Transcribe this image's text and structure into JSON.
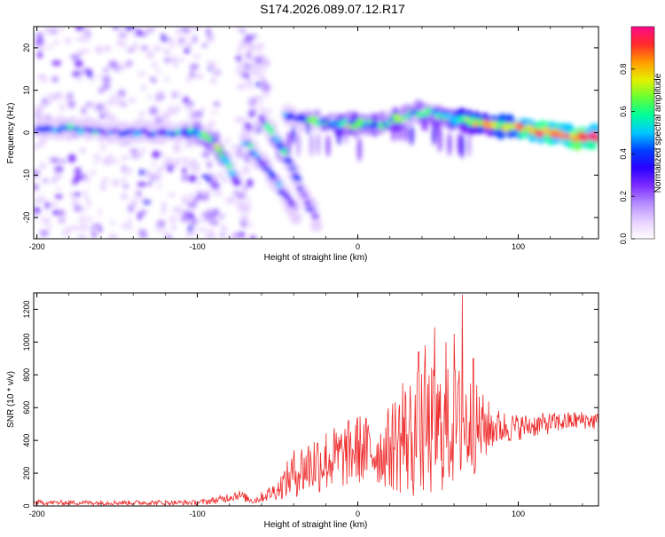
{
  "title": "S174.2026.089.07.12.R17",
  "colors": {
    "snr_line": "#ee2c2c",
    "frame": "#000000",
    "colormap": [
      "#ffffff",
      "#e6d0ff",
      "#b58cff",
      "#7d2cff",
      "#2a00ff",
      "#0040ff",
      "#00c8ff",
      "#00ff9a",
      "#66ff33",
      "#e6f000",
      "#ff9a00",
      "#ff2a2a",
      "#ff0a8c"
    ]
  },
  "chart_data": [
    {
      "type": "heatmap",
      "name": "spectrogram",
      "xlabel": "Height of straight line (km)",
      "ylabel": "Frequency (Hz)",
      "xlim": [
        -202,
        150
      ],
      "ylim": [
        -25,
        25
      ],
      "xticks": [
        -200,
        -100,
        0,
        100
      ],
      "yticks": [
        -20,
        -10,
        0,
        10,
        20
      ],
      "colorbar": {
        "label": "Normalized spectral amplitude",
        "range": [
          0,
          1
        ],
        "ticks": [
          0,
          0.2,
          0.4,
          0.6,
          0.8
        ],
        "tick_labels": [
          "0.0",
          "0.2",
          "0.4",
          "0.6",
          "0.8"
        ]
      },
      "ridges": [
        {
          "name": "main-ridge",
          "points": [
            [
              -200,
              1,
              0.25
            ],
            [
              -175,
              1,
              0.45
            ],
            [
              -150,
              0,
              0.35
            ],
            [
              -125,
              0,
              0.35
            ],
            [
              -100,
              0,
              0.5
            ],
            [
              -90,
              -2,
              0.55
            ],
            [
              -82,
              -7,
              0.55
            ],
            [
              -75,
              -12,
              0.35
            ]
          ]
        },
        {
          "name": "branch-1",
          "points": [
            [
              -70,
              -2,
              0.35
            ],
            [
              -60,
              -7,
              0.45
            ],
            [
              -50,
              -12,
              0.35
            ],
            [
              -38,
              -19,
              0.2
            ]
          ]
        },
        {
          "name": "branch-2",
          "points": [
            [
              -60,
              3,
              0.35
            ],
            [
              -48,
              -3,
              0.5
            ],
            [
              -40,
              -9,
              0.35
            ],
            [
              -32,
              -16,
              0.25
            ],
            [
              -25,
              -21,
              0.2
            ]
          ]
        },
        {
          "name": "upper-ridge",
          "points": [
            [
              -45,
              4,
              0.35
            ],
            [
              -30,
              3,
              0.5
            ],
            [
              -15,
              2,
              0.55
            ],
            [
              0,
              2,
              0.6
            ],
            [
              15,
              2,
              0.55
            ],
            [
              30,
              4,
              0.55
            ],
            [
              45,
              5,
              0.55
            ],
            [
              60,
              3,
              0.6
            ],
            [
              80,
              2,
              0.7
            ],
            [
              100,
              1,
              0.85
            ],
            [
              120,
              0,
              0.9
            ],
            [
              135,
              -1,
              0.95
            ],
            [
              150,
              -1,
              0.9
            ]
          ]
        }
      ]
    },
    {
      "type": "line",
      "name": "snr",
      "xlabel": "Height of straight line (km)",
      "ylabel": "SNR (10 * v/v)",
      "xlim": [
        -202,
        150
      ],
      "ylim": [
        0,
        1300
      ],
      "xticks": [
        -200,
        -100,
        0,
        100
      ],
      "yticks": [
        0,
        200,
        400,
        600,
        800,
        1000,
        1200
      ],
      "envelope": [
        {
          "x": -202,
          "base": 20,
          "amp": 15
        },
        {
          "x": -150,
          "base": 20,
          "amp": 15
        },
        {
          "x": -100,
          "base": 20,
          "amp": 15
        },
        {
          "x": -85,
          "base": 40,
          "amp": 25
        },
        {
          "x": -75,
          "base": 70,
          "amp": 35
        },
        {
          "x": -65,
          "base": 30,
          "amp": 20
        },
        {
          "x": -50,
          "base": 100,
          "amp": 60
        },
        {
          "x": -40,
          "base": 200,
          "amp": 150
        },
        {
          "x": -25,
          "base": 270,
          "amp": 200
        },
        {
          "x": -10,
          "base": 300,
          "amp": 200
        },
        {
          "x": 0,
          "base": 350,
          "amp": 220
        },
        {
          "x": 15,
          "base": 320,
          "amp": 200
        },
        {
          "x": 25,
          "base": 400,
          "amp": 330
        },
        {
          "x": 40,
          "base": 440,
          "amp": 430
        },
        {
          "x": 55,
          "base": 470,
          "amp": 380
        },
        {
          "x": 65,
          "base": 500,
          "amp": 380
        },
        {
          "x": 75,
          "base": 470,
          "amp": 260
        },
        {
          "x": 85,
          "base": 480,
          "amp": 120
        },
        {
          "x": 100,
          "base": 480,
          "amp": 80
        },
        {
          "x": 120,
          "base": 505,
          "amp": 65
        },
        {
          "x": 140,
          "base": 525,
          "amp": 55
        },
        {
          "x": 150,
          "base": 515,
          "amp": 55
        }
      ],
      "spikes": [
        [
          42,
          980
        ],
        [
          48,
          1090
        ],
        [
          55,
          1000
        ],
        [
          65,
          1290
        ],
        [
          60,
          1050
        ],
        [
          38,
          940
        ],
        [
          72,
          900
        ],
        [
          28,
          750
        ]
      ]
    }
  ]
}
